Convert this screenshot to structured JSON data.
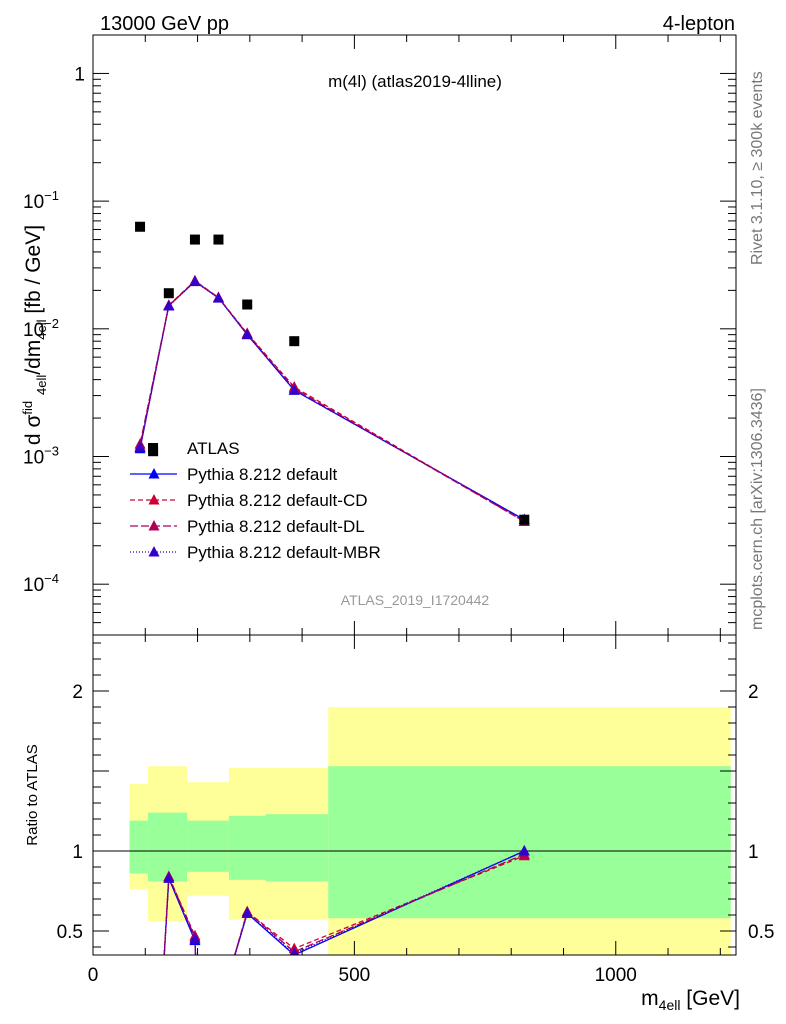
{
  "header": {
    "left": "13000 GeV pp",
    "right": "4-lepton"
  },
  "sidebar": {
    "rivet": "Rivet 3.1.10, ≥ 300k events",
    "mcplots": "mcplots.cern.ch [arXiv:1306.3436]"
  },
  "chart_data": {
    "type": "scatter",
    "title": "m(4l) (atlas2019-4lline)",
    "watermark": "ATLAS_2019_I1720442",
    "main": {
      "ylabel": "dσᶠid₄ₑₗₗ/dm₄ₑₗₗ [fb / GeV]",
      "ylabel_parts": [
        "d σ",
        "fid",
        "4ell",
        "/dm",
        "4ell",
        " [fb / GeV]"
      ],
      "yscale": "log",
      "ylim": [
        4e-05,
        2.0
      ],
      "yticks": [
        {
          "v": 1,
          "label": "1"
        },
        {
          "v": 0.1,
          "label": "10",
          "exp": "−1"
        },
        {
          "v": 0.01,
          "label": "10",
          "exp": "−2"
        },
        {
          "v": 0.001,
          "label": "10",
          "exp": "−3"
        },
        {
          "v": 0.0001,
          "label": "10",
          "exp": "−4"
        }
      ]
    },
    "ratio": {
      "ylabel": "Ratio to ATLAS",
      "ylim": [
        0.35,
        2.35
      ],
      "yticks": [
        {
          "v": 0.5,
          "label": "0.5"
        },
        {
          "v": 1,
          "label": "1"
        },
        {
          "v": 2,
          "label": "2"
        }
      ]
    },
    "x": {
      "label": "m",
      "label_sub": "4ell",
      "label_unit": " [GeV]",
      "xlim": [
        0,
        1230
      ],
      "ticks": [
        {
          "v": 0,
          "label": "0"
        },
        {
          "v": 500,
          "label": "500"
        },
        {
          "v": 1000,
          "label": "1000"
        }
      ]
    },
    "legend_position": "bottom-left",
    "data": {
      "name": "ATLAS",
      "x": [
        90,
        115,
        145,
        195,
        240,
        295,
        385,
        825
      ],
      "y": [
        0.063,
        0.0011,
        0.019,
        0.05,
        0.05,
        0.0155,
        0.008,
        0.00032
      ],
      "color": "#000000"
    },
    "series": [
      {
        "name": "Pythia 8.212 default",
        "color": "#0000ff",
        "dash": "",
        "x": [
          90,
          145,
          195,
          240,
          295,
          385,
          825
        ],
        "y": [
          0.00115,
          0.0152,
          0.0235,
          0.0175,
          0.009,
          0.0033,
          0.00032
        ],
        "ratio_x": [
          130,
          145,
          195,
          200,
          240,
          295,
          385,
          825
        ],
        "ratio_y": [
          0.0,
          0.83,
          0.44,
          0.0,
          0.0,
          0.61,
          0.35,
          1.0
        ]
      },
      {
        "name": "Pythia 8.212 default-CD",
        "color": "#cc0033",
        "dash": "5,3",
        "x": [
          90,
          145,
          195,
          240,
          295,
          385,
          825
        ],
        "y": [
          0.0012,
          0.0153,
          0.0238,
          0.0176,
          0.0092,
          0.0035,
          0.00031
        ],
        "ratio_x": [
          130,
          145,
          195,
          200,
          240,
          295,
          385,
          825
        ],
        "ratio_y": [
          0.0,
          0.84,
          0.47,
          0.0,
          0.0,
          0.62,
          0.39,
          0.97
        ]
      },
      {
        "name": "Pythia 8.212 default-DL",
        "color": "#b0005a",
        "dash": "8,3",
        "x": [
          90,
          145,
          195,
          240,
          295,
          385,
          825
        ],
        "y": [
          0.00125,
          0.0152,
          0.0236,
          0.0175,
          0.0091,
          0.0034,
          0.00031
        ],
        "ratio_x": [
          130,
          145,
          195,
          200,
          240,
          295,
          385,
          825
        ],
        "ratio_y": [
          0.0,
          0.84,
          0.46,
          0.0,
          0.0,
          0.62,
          0.37,
          0.98
        ]
      },
      {
        "name": "Pythia 8.212 default-MBR",
        "color": "#3300cc",
        "dash": "1,2",
        "x": [
          90,
          145,
          195,
          240,
          295,
          385,
          825
        ],
        "y": [
          0.00118,
          0.0151,
          0.0234,
          0.0174,
          0.009,
          0.0033,
          0.00032
        ],
        "ratio_x": [
          130,
          145,
          195,
          200,
          240,
          295,
          385,
          825
        ],
        "ratio_y": [
          0.0,
          0.83,
          0.45,
          0.0,
          0.0,
          0.61,
          0.36,
          1.0
        ]
      }
    ],
    "bands": [
      {
        "x0": 70,
        "x1": 105,
        "lo1": 0.86,
        "hi1": 1.19,
        "lo2": 0.76,
        "hi2": 1.42
      },
      {
        "x0": 105,
        "x1": 180,
        "lo1": 0.81,
        "hi1": 1.24,
        "lo2": 0.56,
        "hi2": 1.53
      },
      {
        "x0": 180,
        "x1": 260,
        "lo1": 0.87,
        "hi1": 1.19,
        "lo2": 0.72,
        "hi2": 1.43
      },
      {
        "x0": 260,
        "x1": 330,
        "lo1": 0.82,
        "hi1": 1.22,
        "lo2": 0.57,
        "hi2": 1.52
      },
      {
        "x0": 330,
        "x1": 450,
        "lo1": 0.81,
        "hi1": 1.23,
        "lo2": 0.57,
        "hi2": 1.52
      },
      {
        "x0": 450,
        "x1": 1220,
        "lo1": 0.58,
        "hi1": 1.53,
        "lo2": 0.0,
        "hi2": 1.9
      }
    ],
    "band_colors": {
      "inner": "#99ff99",
      "outer": "#ffff99"
    }
  }
}
